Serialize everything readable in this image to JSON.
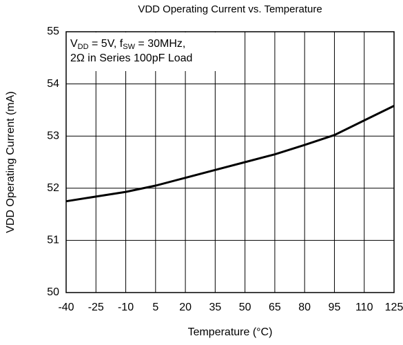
{
  "chart_data": {
    "type": "line",
    "title": "VDD Operating Current vs. Temperature",
    "x_label": "Temperature (°C)",
    "y_label": "VDD Operating Current (mA)",
    "annotation": [
      [
        {
          "text": "V"
        },
        {
          "text": "DD",
          "sub": true
        },
        {
          "text": " = 5V, f"
        },
        {
          "text": "SW",
          "sub": true
        },
        {
          "text": " = 30MHz,"
        }
      ],
      [
        {
          "text": "2Ω in Series 100pF Load"
        }
      ]
    ],
    "x": [
      -40,
      -25,
      -10,
      5,
      20,
      35,
      50,
      65,
      80,
      95,
      110,
      125
    ],
    "series": [
      {
        "color": "#000000",
        "values": [
          51.75,
          51.84,
          51.93,
          52.05,
          52.2,
          52.35,
          52.5,
          52.65,
          52.83,
          53.02,
          53.3,
          53.58
        ]
      }
    ],
    "xlim": [
      -40,
      125
    ],
    "xticks": [
      -40,
      -25,
      -10,
      5,
      20,
      35,
      50,
      65,
      80,
      95,
      110,
      125
    ],
    "ylim": [
      50,
      55
    ],
    "yticks": [
      50,
      51,
      52,
      53,
      54,
      55
    ],
    "grid": true
  }
}
